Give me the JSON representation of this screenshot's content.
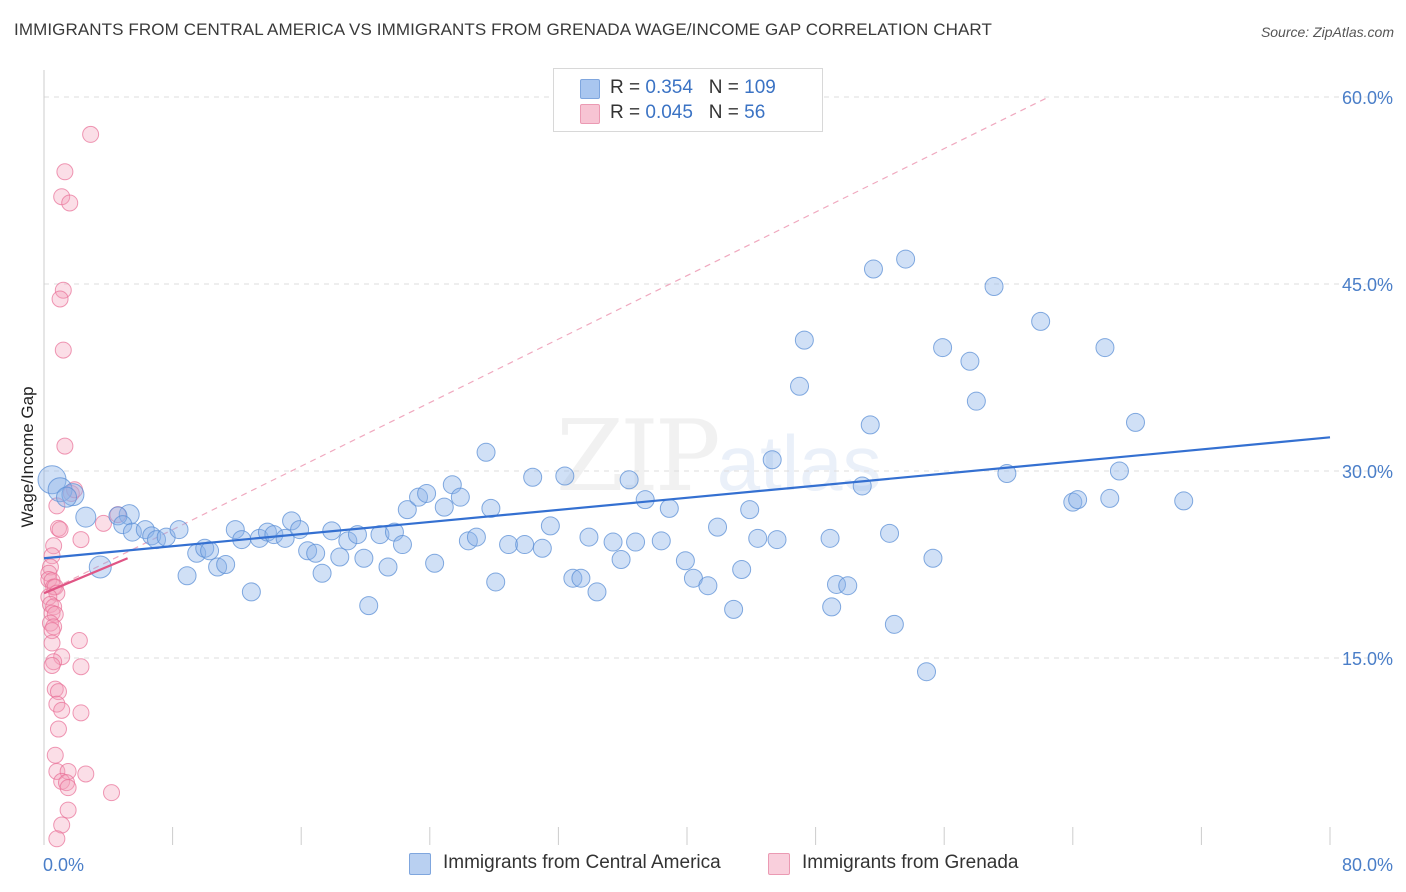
{
  "title": "IMMIGRANTS FROM CENTRAL AMERICA VS IMMIGRANTS FROM GRENADA WAGE/INCOME GAP CORRELATION CHART",
  "source": "Source: ZipAtlas.com",
  "watermark": {
    "zip": "ZIP",
    "atlas": "atlas"
  },
  "legend": {
    "r_label": "R =",
    "n_label": "N =",
    "rows": [
      {
        "r": "0.354",
        "n": "109",
        "color": "#a9c6ef"
      },
      {
        "r": "0.045",
        "n": "56",
        "color": "#f7b6c9"
      }
    ]
  },
  "colors": {
    "blue_fill": "rgba(138,178,232,0.40)",
    "blue_stroke": "#5b8fd6",
    "blue_line": "#3470d1",
    "pink_fill": "rgba(244,160,186,0.35)",
    "pink_stroke": "#e86d95",
    "pink_line": "#e05585",
    "tick_color": "#4a7ec8",
    "grid": "#dddddd"
  },
  "chart_data": {
    "type": "scatter",
    "title": "IMMIGRANTS FROM CENTRAL AMERICA VS IMMIGRANTS FROM GRENADA WAGE/INCOME GAP CORRELATION CHART",
    "xlabel": "",
    "ylabel": "Wage/Income Gap",
    "xlim": [
      0,
      80
    ],
    "ylim": [
      0,
      60
    ],
    "x_tick_labels": [
      "0.0%",
      "80.0%"
    ],
    "y_ticks": [
      15,
      30,
      45,
      60
    ],
    "y_tick_labels": [
      "15.0%",
      "30.0%",
      "45.0%",
      "60.0%"
    ],
    "x_minor_ticks": [
      0,
      8,
      16,
      24,
      32,
      40,
      48,
      56,
      64,
      72,
      80
    ],
    "grid": true,
    "legend_position": "top-center",
    "series": [
      {
        "name": "Immigrants from Central America",
        "color": "#a9c6ef",
        "trend": {
          "x": [
            0,
            80
          ],
          "y": [
            23.0,
            32.7
          ]
        },
        "points": [
          [
            0.5,
            29.3,
            14
          ],
          [
            1.0,
            28.5,
            12
          ],
          [
            1.8,
            28.1,
            11
          ],
          [
            1.4,
            27.9,
            10
          ],
          [
            2.6,
            26.3,
            10
          ],
          [
            3.5,
            22.3,
            11
          ],
          [
            5.3,
            26.5,
            10
          ],
          [
            4.6,
            26.4,
            9
          ],
          [
            4.9,
            25.7,
            9
          ],
          [
            5.5,
            25.1,
            9
          ],
          [
            6.3,
            25.3,
            9
          ],
          [
            6.7,
            24.8,
            9
          ],
          [
            7.0,
            24.5,
            9
          ],
          [
            7.6,
            24.7,
            9
          ],
          [
            8.4,
            25.3,
            9
          ],
          [
            8.9,
            21.6,
            9
          ],
          [
            9.5,
            23.4,
            9
          ],
          [
            10.0,
            23.8,
            9
          ],
          [
            10.3,
            23.6,
            9
          ],
          [
            10.8,
            22.3,
            9
          ],
          [
            11.3,
            22.5,
            9
          ],
          [
            11.9,
            25.3,
            9
          ],
          [
            12.3,
            24.5,
            9
          ],
          [
            12.9,
            20.3,
            9
          ],
          [
            13.4,
            24.6,
            9
          ],
          [
            13.9,
            25.1,
            9
          ],
          [
            14.3,
            24.9,
            9
          ],
          [
            15.0,
            24.6,
            9
          ],
          [
            15.4,
            26.0,
            9
          ],
          [
            15.9,
            25.3,
            9
          ],
          [
            16.4,
            23.6,
            9
          ],
          [
            16.9,
            23.4,
            9
          ],
          [
            17.3,
            21.8,
            9
          ],
          [
            17.9,
            25.2,
            9
          ],
          [
            18.4,
            23.1,
            9
          ],
          [
            18.9,
            24.4,
            9
          ],
          [
            19.5,
            24.9,
            9
          ],
          [
            19.9,
            23.0,
            9
          ],
          [
            20.2,
            19.2,
            9
          ],
          [
            20.9,
            24.9,
            9
          ],
          [
            21.4,
            22.3,
            9
          ],
          [
            21.8,
            25.1,
            9
          ],
          [
            22.3,
            24.1,
            9
          ],
          [
            22.6,
            26.9,
            9
          ],
          [
            23.3,
            27.9,
            9
          ],
          [
            23.8,
            28.2,
            9
          ],
          [
            24.3,
            22.6,
            9
          ],
          [
            24.9,
            27.1,
            9
          ],
          [
            25.4,
            28.9,
            9
          ],
          [
            25.9,
            27.9,
            9
          ],
          [
            26.4,
            24.4,
            9
          ],
          [
            26.9,
            24.7,
            9
          ],
          [
            27.5,
            31.5,
            9
          ],
          [
            27.8,
            27.0,
            9
          ],
          [
            28.1,
            21.1,
            9
          ],
          [
            28.9,
            24.1,
            9
          ],
          [
            29.9,
            24.1,
            9
          ],
          [
            30.4,
            29.5,
            9
          ],
          [
            31.0,
            23.8,
            9
          ],
          [
            31.5,
            25.6,
            9
          ],
          [
            32.4,
            29.6,
            9
          ],
          [
            32.9,
            21.4,
            9
          ],
          [
            33.4,
            21.4,
            9
          ],
          [
            33.9,
            24.7,
            9
          ],
          [
            34.4,
            20.3,
            9
          ],
          [
            35.4,
            24.3,
            9
          ],
          [
            35.9,
            22.9,
            9
          ],
          [
            36.4,
            29.3,
            9
          ],
          [
            36.8,
            24.3,
            9
          ],
          [
            37.4,
            27.7,
            9
          ],
          [
            38.4,
            24.4,
            9
          ],
          [
            38.9,
            27.0,
            9
          ],
          [
            39.9,
            22.8,
            9
          ],
          [
            40.4,
            21.4,
            9
          ],
          [
            41.3,
            20.8,
            9
          ],
          [
            41.9,
            25.5,
            9
          ],
          [
            42.9,
            18.9,
            9
          ],
          [
            43.4,
            22.1,
            9
          ],
          [
            43.9,
            26.9,
            9
          ],
          [
            44.4,
            24.6,
            9
          ],
          [
            45.3,
            30.9,
            9
          ],
          [
            45.6,
            24.5,
            9
          ],
          [
            47.3,
            40.5,
            9
          ],
          [
            47.0,
            36.8,
            9
          ],
          [
            48.9,
            24.6,
            9
          ],
          [
            49.0,
            19.1,
            9
          ],
          [
            49.3,
            20.9,
            9
          ],
          [
            50.0,
            20.8,
            9
          ],
          [
            50.9,
            28.8,
            9
          ],
          [
            51.4,
            33.7,
            9
          ],
          [
            51.6,
            46.2,
            9
          ],
          [
            52.6,
            25.0,
            9
          ],
          [
            52.9,
            17.7,
            9
          ],
          [
            53.6,
            47.0,
            9
          ],
          [
            54.9,
            13.9,
            9
          ],
          [
            55.3,
            23.0,
            9
          ],
          [
            55.9,
            39.9,
            9
          ],
          [
            57.6,
            38.8,
            9
          ],
          [
            58.0,
            35.6,
            9
          ],
          [
            59.1,
            44.8,
            9
          ],
          [
            59.9,
            29.8,
            9
          ],
          [
            62.0,
            42.0,
            9
          ],
          [
            64.0,
            27.5,
            9
          ],
          [
            64.3,
            27.7,
            9
          ],
          [
            66.0,
            39.9,
            9
          ],
          [
            66.3,
            27.8,
            9
          ],
          [
            66.9,
            30.0,
            9
          ],
          [
            67.9,
            33.9,
            9
          ],
          [
            70.9,
            27.6,
            9
          ]
        ]
      },
      {
        "name": "Immigrants from Grenada",
        "color": "#f7b6c9",
        "trend": {
          "x": [
            0,
            5.2
          ],
          "y": [
            20.2,
            23.0
          ]
        },
        "reference_line": {
          "x": [
            0,
            62.5
          ],
          "y": [
            20.2,
            60
          ]
        },
        "points": [
          [
            2.9,
            57.0,
            8
          ],
          [
            1.3,
            54.0,
            8
          ],
          [
            1.1,
            52.0,
            8
          ],
          [
            1.6,
            51.5,
            8
          ],
          [
            1.2,
            44.5,
            8
          ],
          [
            1.0,
            43.8,
            8
          ],
          [
            1.2,
            39.7,
            8
          ],
          [
            1.3,
            32.0,
            8
          ],
          [
            1.7,
            28.2,
            8
          ],
          [
            0.8,
            27.2,
            8
          ],
          [
            0.9,
            25.4,
            8
          ],
          [
            1.0,
            25.3,
            8
          ],
          [
            2.3,
            24.5,
            8
          ],
          [
            0.6,
            24.0,
            8
          ],
          [
            0.5,
            23.2,
            8
          ],
          [
            0.4,
            22.3,
            8
          ],
          [
            0.3,
            21.8,
            8
          ],
          [
            0.3,
            21.3,
            8
          ],
          [
            0.5,
            21.2,
            8
          ],
          [
            0.6,
            20.7,
            8
          ],
          [
            0.7,
            20.7,
            8
          ],
          [
            0.8,
            20.2,
            8
          ],
          [
            0.3,
            19.9,
            8
          ],
          [
            0.4,
            19.3,
            8
          ],
          [
            0.6,
            19.1,
            8
          ],
          [
            0.5,
            18.6,
            8
          ],
          [
            0.7,
            18.5,
            8
          ],
          [
            0.4,
            17.8,
            8
          ],
          [
            0.6,
            17.5,
            8
          ],
          [
            0.5,
            17.2,
            8
          ],
          [
            2.2,
            16.4,
            8
          ],
          [
            0.5,
            16.2,
            8
          ],
          [
            1.1,
            15.1,
            8
          ],
          [
            0.6,
            14.7,
            8
          ],
          [
            0.5,
            14.4,
            8
          ],
          [
            2.3,
            14.3,
            8
          ],
          [
            0.7,
            12.5,
            8
          ],
          [
            0.9,
            12.3,
            8
          ],
          [
            0.8,
            11.3,
            8
          ],
          [
            1.1,
            10.8,
            8
          ],
          [
            2.3,
            10.6,
            8
          ],
          [
            0.9,
            9.3,
            8
          ],
          [
            0.7,
            7.2,
            8
          ],
          [
            0.8,
            5.9,
            8
          ],
          [
            1.5,
            5.9,
            8
          ],
          [
            2.6,
            5.7,
            8
          ],
          [
            1.1,
            5.1,
            8
          ],
          [
            1.4,
            5.0,
            8
          ],
          [
            1.5,
            4.6,
            8
          ],
          [
            4.2,
            4.2,
            8
          ],
          [
            1.5,
            2.8,
            8
          ],
          [
            1.1,
            1.6,
            8
          ],
          [
            0.8,
            0.5,
            8
          ],
          [
            4.6,
            26.5,
            8
          ],
          [
            3.7,
            25.8,
            8
          ],
          [
            1.9,
            28.5,
            8
          ]
        ]
      }
    ]
  }
}
